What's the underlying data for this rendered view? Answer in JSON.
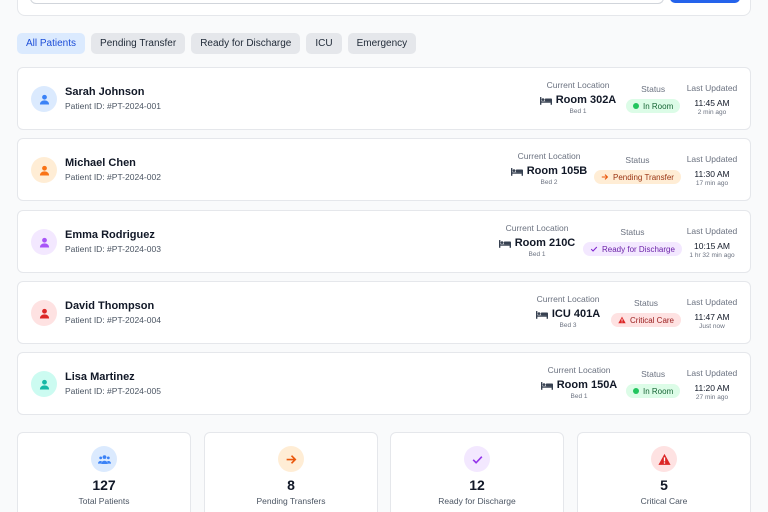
{
  "filters": [
    "All Patients",
    "Pending Transfer",
    "Ready for Discharge",
    "ICU",
    "Emergency"
  ],
  "labels": {
    "current_location": "Current Location",
    "status": "Status",
    "last_updated": "Last Updated"
  },
  "patients": [
    {
      "name": "Sarah Johnson",
      "id": "Patient ID: #PT-2024-001",
      "room": "Room 302A",
      "bed": "Bed 1",
      "status": "In Room",
      "time": "11:45 AM",
      "ago": "2 min ago"
    },
    {
      "name": "Michael Chen",
      "id": "Patient ID: #PT-2024-002",
      "room": "Room 105B",
      "bed": "Bed 2",
      "status": "Pending Transfer",
      "time": "11:30 AM",
      "ago": "17 min ago"
    },
    {
      "name": "Emma Rodriguez",
      "id": "Patient ID: #PT-2024-003",
      "room": "Room 210C",
      "bed": "Bed 1",
      "status": "Ready for Discharge",
      "time": "10:15 AM",
      "ago": "1 hr 32 min ago"
    },
    {
      "name": "David Thompson",
      "id": "Patient ID: #PT-2024-004",
      "room": "ICU 401A",
      "bed": "Bed 3",
      "status": "Critical Care",
      "time": "11:47 AM",
      "ago": "Just now"
    },
    {
      "name": "Lisa Martinez",
      "id": "Patient ID: #PT-2024-005",
      "room": "Room 150A",
      "bed": "Bed 1",
      "status": "In Room",
      "time": "11:20 AM",
      "ago": "27 min ago"
    }
  ],
  "stats": [
    {
      "value": "127",
      "label": "Total Patients"
    },
    {
      "value": "8",
      "label": "Pending Transfers"
    },
    {
      "value": "12",
      "label": "Ready for Discharge"
    },
    {
      "value": "5",
      "label": "Critical Care"
    }
  ],
  "colors": {
    "accent": "#2563eb",
    "blue": "#3b82f6",
    "orange": "#f97316",
    "purple": "#a855f7",
    "red": "#ef4444",
    "teal": "#14b8a6"
  }
}
